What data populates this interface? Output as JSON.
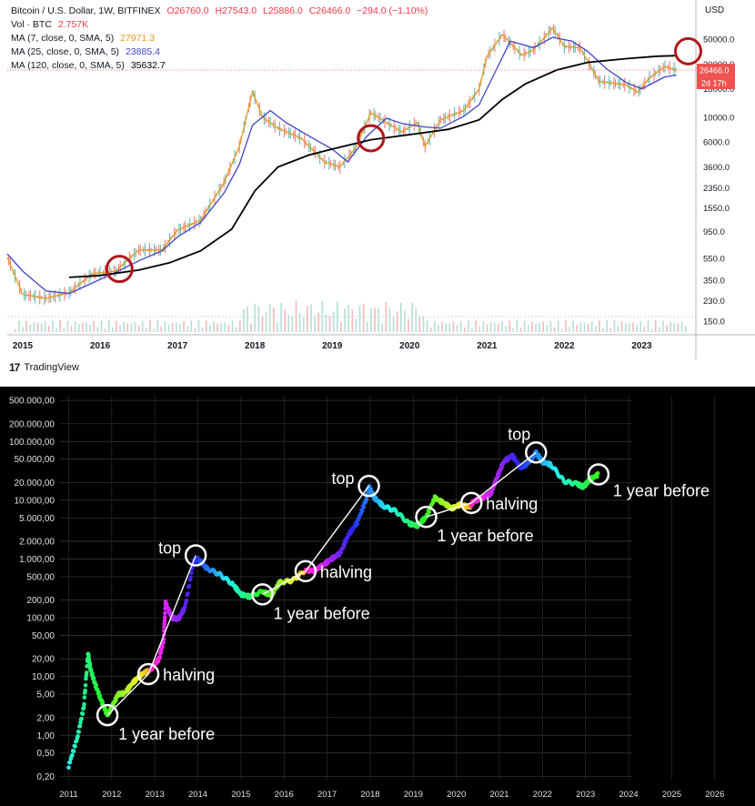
{
  "chart_data": [
    {
      "type": "line",
      "title": "Bitcoin / U.S. Dollar, 1W, BITFINEX",
      "ohlc": {
        "open": "O26760.0",
        "high": "H27543.0",
        "low": "L25886.0",
        "close": "C26466.0",
        "change": "−294.0 (−1.10%)"
      },
      "volume_label": "Vol · BTC",
      "volume_value": "2.757K",
      "currency_label": "USD",
      "last_price_tag": "26466.0",
      "countdown_tag": "2d 17h",
      "yscale": "log",
      "ylim": [
        120,
        80000
      ],
      "xlim": [
        2014.8,
        2023.7
      ],
      "x_ticks": [
        "2015",
        "2016",
        "2017",
        "2018",
        "2019",
        "2020",
        "2021",
        "2022",
        "2023"
      ],
      "y_ticks": [
        "50000.0",
        "30000.0",
        "18000.0",
        "10000.0",
        "6000.0",
        "3600.0",
        "2350.0",
        "1550.0",
        "950.0",
        "550.0",
        "350.0",
        "230.0",
        "150.0"
      ],
      "series": [
        {
          "name": "MA (7, close, 0, SMA, 5)",
          "value": "27971.3",
          "color": "#e89a1c",
          "points": [
            [
              2014.8,
              560
            ],
            [
              2015.0,
              260
            ],
            [
              2015.3,
              240
            ],
            [
              2015.6,
              270
            ],
            [
              2015.9,
              400
            ],
            [
              2016.2,
              420
            ],
            [
              2016.5,
              650
            ],
            [
              2016.8,
              650
            ],
            [
              2017.0,
              980
            ],
            [
              2017.3,
              1200
            ],
            [
              2017.6,
              2600
            ],
            [
              2017.8,
              5500
            ],
            [
              2017.97,
              17000
            ],
            [
              2018.1,
              10000
            ],
            [
              2018.3,
              8000
            ],
            [
              2018.6,
              6500
            ],
            [
              2018.9,
              4000
            ],
            [
              2019.1,
              3600
            ],
            [
              2019.3,
              5300
            ],
            [
              2019.5,
              11000
            ],
            [
              2019.7,
              9000
            ],
            [
              2019.9,
              7400
            ],
            [
              2020.1,
              9000
            ],
            [
              2020.2,
              5500
            ],
            [
              2020.4,
              9500
            ],
            [
              2020.7,
              11500
            ],
            [
              2020.9,
              18000
            ],
            [
              2021.0,
              35000
            ],
            [
              2021.2,
              55000
            ],
            [
              2021.45,
              36000
            ],
            [
              2021.6,
              40000
            ],
            [
              2021.85,
              63000
            ],
            [
              2022.0,
              43000
            ],
            [
              2022.2,
              42000
            ],
            [
              2022.45,
              21000
            ],
            [
              2022.8,
              19500
            ],
            [
              2022.95,
              16800
            ],
            [
              2023.1,
              22500
            ],
            [
              2023.3,
              28500
            ],
            [
              2023.45,
              26500
            ]
          ]
        },
        {
          "name": "MA (25, close, 0, SMA, 5)",
          "value": "23885.4",
          "color": "#3f44c8",
          "points": [
            [
              2014.8,
              600
            ],
            [
              2015.0,
              420
            ],
            [
              2015.3,
              280
            ],
            [
              2015.6,
              265
            ],
            [
              2015.9,
              330
            ],
            [
              2016.2,
              410
            ],
            [
              2016.5,
              520
            ],
            [
              2016.8,
              640
            ],
            [
              2017.0,
              850
            ],
            [
              2017.3,
              1150
            ],
            [
              2017.6,
              2100
            ],
            [
              2017.8,
              3800
            ],
            [
              2017.97,
              8500
            ],
            [
              2018.2,
              11500
            ],
            [
              2018.4,
              9000
            ],
            [
              2018.7,
              6800
            ],
            [
              2019.0,
              5200
            ],
            [
              2019.2,
              4000
            ],
            [
              2019.45,
              6800
            ],
            [
              2019.7,
              9800
            ],
            [
              2019.9,
              8800
            ],
            [
              2020.2,
              8200
            ],
            [
              2020.4,
              8000
            ],
            [
              2020.7,
              10200
            ],
            [
              2020.9,
              13000
            ],
            [
              2021.1,
              25000
            ],
            [
              2021.3,
              48000
            ],
            [
              2021.6,
              42000
            ],
            [
              2021.85,
              52000
            ],
            [
              2022.1,
              48000
            ],
            [
              2022.3,
              39000
            ],
            [
              2022.55,
              27000
            ],
            [
              2022.8,
              20500
            ],
            [
              2023.0,
              18000
            ],
            [
              2023.3,
              23000
            ],
            [
              2023.45,
              23900
            ]
          ]
        },
        {
          "name": "MA (120, close, 0, SMA, 5)",
          "value": "35632.7",
          "color": "#000000",
          "points": [
            [
              2015.6,
              370
            ],
            [
              2016.0,
              385
            ],
            [
              2016.5,
              430
            ],
            [
              2016.9,
              500
            ],
            [
              2017.3,
              640
            ],
            [
              2017.7,
              1000
            ],
            [
              2018.0,
              2200
            ],
            [
              2018.3,
              3600
            ],
            [
              2018.7,
              4600
            ],
            [
              2019.0,
              5200
            ],
            [
              2019.5,
              6300
            ],
            [
              2020.0,
              7000
            ],
            [
              2020.5,
              7800
            ],
            [
              2020.9,
              9500
            ],
            [
              2021.2,
              14500
            ],
            [
              2021.5,
              20000
            ],
            [
              2021.9,
              26500
            ],
            [
              2022.3,
              31000
            ],
            [
              2022.8,
              33500
            ],
            [
              2023.2,
              35200
            ],
            [
              2023.45,
              35600
            ]
          ]
        }
      ],
      "markers": [
        {
          "x": 2016.25,
          "y": 440
        },
        {
          "x": 2019.5,
          "y": 6500
        },
        {
          "x": 2023.6,
          "y": 39000
        }
      ]
    },
    {
      "type": "scatter",
      "yscale": "log",
      "ylim": [
        0.17,
        600000
      ],
      "xlim": [
        2010.8,
        2026.3
      ],
      "x_ticks": [
        "2011",
        "2012",
        "2013",
        "2014",
        "2015",
        "2016",
        "2017",
        "2018",
        "2019",
        "2020",
        "2021",
        "2022",
        "2023",
        "2024",
        "2025",
        "2026"
      ],
      "y_ticks": [
        "500.000,00",
        "200.000,00",
        "100.000,00",
        "50.000,00",
        "20.000,00",
        "10.000,00",
        "5.000,00",
        "2.000,00",
        "1.000,00",
        "500,00",
        "200,00",
        "100,00",
        "50,00",
        "20,00",
        "10,00",
        "5,00",
        "2,00",
        "1,00",
        "0,50",
        "0,20"
      ],
      "series": [
        {
          "points": [
            [
              2011.0,
              0.3
            ],
            [
              2011.2,
              0.9
            ],
            [
              2011.35,
              3
            ],
            [
              2011.45,
              25
            ],
            [
              2011.5,
              14
            ],
            [
              2011.6,
              8
            ],
            [
              2011.75,
              4
            ],
            [
              2011.9,
              2.2
            ],
            [
              2012.0,
              3
            ],
            [
              2012.15,
              5
            ],
            [
              2012.3,
              5.2
            ],
            [
              2012.5,
              8
            ],
            [
              2012.7,
              11
            ],
            [
              2012.9,
              13
            ],
            [
              2013.1,
              20
            ],
            [
              2013.2,
              40
            ],
            [
              2013.25,
              180
            ],
            [
              2013.4,
              100
            ],
            [
              2013.55,
              95
            ],
            [
              2013.7,
              150
            ],
            [
              2013.9,
              900
            ],
            [
              2014.0,
              1000
            ],
            [
              2014.2,
              700
            ],
            [
              2014.5,
              550
            ],
            [
              2014.8,
              380
            ],
            [
              2015.0,
              250
            ],
            [
              2015.2,
              230
            ],
            [
              2015.5,
              280
            ],
            [
              2015.7,
              240
            ],
            [
              2015.9,
              400
            ],
            [
              2016.2,
              430
            ],
            [
              2016.5,
              650
            ],
            [
              2016.7,
              630
            ],
            [
              2016.9,
              780
            ],
            [
              2017.1,
              1000
            ],
            [
              2017.3,
              1250
            ],
            [
              2017.5,
              2600
            ],
            [
              2017.7,
              4200
            ],
            [
              2017.9,
              10000
            ],
            [
              2017.97,
              17000
            ],
            [
              2018.1,
              11000
            ],
            [
              2018.3,
              8000
            ],
            [
              2018.6,
              6500
            ],
            [
              2018.9,
              4000
            ],
            [
              2019.1,
              3700
            ],
            [
              2019.3,
              5200
            ],
            [
              2019.5,
              11000
            ],
            [
              2019.7,
              9000
            ],
            [
              2019.9,
              7300
            ],
            [
              2020.1,
              8500
            ],
            [
              2020.3,
              7500
            ],
            [
              2020.4,
              9500
            ],
            [
              2020.6,
              11000
            ],
            [
              2020.8,
              13000
            ],
            [
              2020.95,
              25000
            ],
            [
              2021.1,
              45000
            ],
            [
              2021.3,
              58000
            ],
            [
              2021.5,
              35000
            ],
            [
              2021.7,
              45000
            ],
            [
              2021.85,
              65000
            ],
            [
              2022.0,
              45000
            ],
            [
              2022.2,
              40000
            ],
            [
              2022.5,
              21000
            ],
            [
              2022.8,
              19000
            ],
            [
              2022.95,
              16800
            ],
            [
              2023.1,
              22500
            ],
            [
              2023.3,
              27500
            ]
          ]
        }
      ],
      "path_lines": [
        [
          [
            2011.9,
            2.2
          ],
          [
            2012.85,
            11
          ],
          [
            2013.95,
            1150
          ]
        ],
        [
          [
            2015.5,
            250
          ],
          [
            2016.5,
            620
          ],
          [
            2017.97,
            17500
          ]
        ],
        [
          [
            2019.3,
            5200
          ],
          [
            2020.35,
            9000
          ],
          [
            2021.85,
            65000
          ]
        ]
      ],
      "markers": [
        {
          "x": 2011.9,
          "y": 2.2,
          "label": "1 year before",
          "label_pos": "below-right"
        },
        {
          "x": 2012.85,
          "y": 11,
          "label": "halving",
          "label_pos": "right"
        },
        {
          "x": 2013.95,
          "y": 1150,
          "label": "top",
          "label_pos": "left"
        },
        {
          "x": 2015.5,
          "y": 250,
          "label": "1 year before",
          "label_pos": "below-right"
        },
        {
          "x": 2016.5,
          "y": 620,
          "label": "halving",
          "label_pos": "right"
        },
        {
          "x": 2017.97,
          "y": 17500,
          "label": "top",
          "label_pos": "left"
        },
        {
          "x": 2019.3,
          "y": 5200,
          "label": "1 year before",
          "label_pos": "below-right"
        },
        {
          "x": 2020.35,
          "y": 9000,
          "label": "halving",
          "label_pos": "right"
        },
        {
          "x": 2021.85,
          "y": 65000,
          "label": "top",
          "label_pos": "above-left"
        },
        {
          "x": 2023.3,
          "y": 27500,
          "label": "1 year before",
          "label_pos": "right"
        }
      ]
    }
  ],
  "brand": {
    "logo_text": "17",
    "name": "TradingView"
  }
}
